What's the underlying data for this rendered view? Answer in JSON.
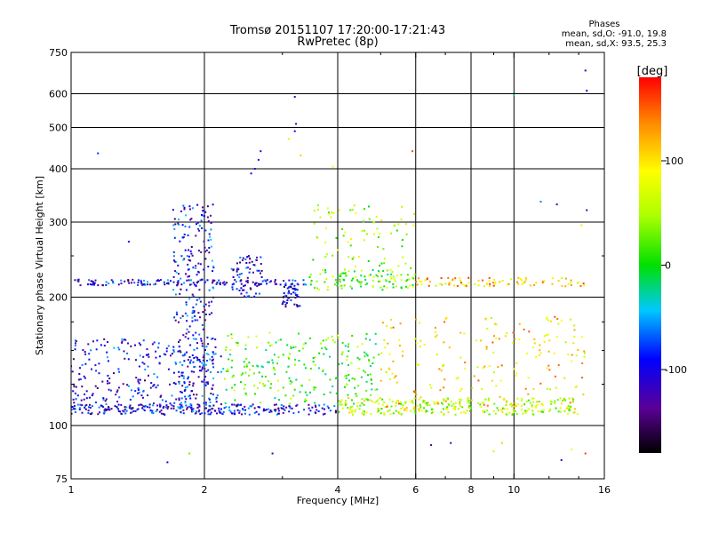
{
  "header": {
    "title_line1": "Tromsø 20151107 17:20:00-17:21:43",
    "title_line2": "RwPretec (8p)"
  },
  "phase_stats": {
    "heading": "Phases",
    "o_line": "mean, sd,O: -91.0, 19.8",
    "x_line": "mean, sd,X:  93.5, 25.3"
  },
  "chart_data": {
    "type": "scatter",
    "title": "Tromsø 20151107 17:20:00-17:21:43",
    "subtitle": "RwPretec (8p)",
    "xlabel": "Frequency [MHz]",
    "ylabel": "Stationary phase Virtual Height [km]",
    "xscale": "log",
    "yscale": "log",
    "xlim": [
      1,
      16
    ],
    "ylim": [
      75,
      750
    ],
    "xticks": [
      1,
      2,
      4,
      6,
      8,
      10,
      16
    ],
    "yticks": [
      75,
      100,
      200,
      300,
      400,
      500,
      600,
      750
    ],
    "xgrid": [
      2,
      4,
      6,
      8,
      10
    ],
    "ygrid": [
      100,
      200,
      300,
      400,
      500,
      600
    ],
    "colorbar": {
      "label": "[deg]",
      "min": -180,
      "max": 180,
      "ticks": [
        100,
        0,
        -100
      ],
      "colormap": "rainbow"
    },
    "clusters": [
      {
        "name": "F-layer O trace",
        "x": [
          1.0,
          3.4
        ],
        "y": [
          213,
          220
        ],
        "phase": -100,
        "count": 150
      },
      {
        "name": "F-layer mixed trace",
        "x": [
          3.4,
          6.0
        ],
        "y": [
          208,
          232
        ],
        "phase": 30,
        "count": 110
      },
      {
        "name": "F-layer X trace",
        "x": [
          6.0,
          14.5
        ],
        "y": [
          212,
          222
        ],
        "phase": 110,
        "count": 90
      },
      {
        "name": "E-layer O trace",
        "x": [
          1.0,
          4.0
        ],
        "y": [
          106,
          112
        ],
        "phase": -105,
        "count": 260
      },
      {
        "name": "E-layer mixed trace",
        "x": [
          4.0,
          14.0
        ],
        "y": [
          106,
          116
        ],
        "phase": 60,
        "count": 300
      },
      {
        "name": "spread echoes low freq",
        "x": [
          1.0,
          2.2
        ],
        "y": [
          110,
          160
        ],
        "phase": -100,
        "count": 260
      },
      {
        "name": "spread echoes mid freq",
        "x": [
          2.2,
          5.0
        ],
        "y": [
          112,
          165
        ],
        "phase": 20,
        "count": 240
      },
      {
        "name": "spread echoes high freq",
        "x": [
          5.0,
          14.5
        ],
        "y": [
          110,
          180
        ],
        "phase": 100,
        "count": 190
      },
      {
        "name": "vertical spread near 2 MHz",
        "x": [
          1.7,
          2.1
        ],
        "y": [
          110,
          330
        ],
        "phase": -95,
        "count": 280
      },
      {
        "name": "hump near 2.4 MHz",
        "x": [
          2.3,
          2.7
        ],
        "y": [
          200,
          250
        ],
        "phase": -105,
        "count": 70
      },
      {
        "name": "F-cusp cluster",
        "x": [
          3.0,
          3.3
        ],
        "y": [
          190,
          215
        ],
        "phase": -110,
        "count": 50
      },
      {
        "name": "F-region upper spread",
        "x": [
          3.5,
          6.0
        ],
        "y": [
          230,
          330
        ],
        "phase": 50,
        "count": 80
      }
    ],
    "points": [
      {
        "x": 2.55,
        "y": 390,
        "phase": -110
      },
      {
        "x": 2.6,
        "y": 400,
        "phase": -110
      },
      {
        "x": 2.65,
        "y": 420,
        "phase": -105
      },
      {
        "x": 2.68,
        "y": 440,
        "phase": -100
      },
      {
        "x": 3.1,
        "y": 470,
        "phase": 100
      },
      {
        "x": 3.2,
        "y": 490,
        "phase": -110
      },
      {
        "x": 3.22,
        "y": 510,
        "phase": -110
      },
      {
        "x": 3.2,
        "y": 590,
        "phase": -120
      },
      {
        "x": 3.3,
        "y": 430,
        "phase": 110
      },
      {
        "x": 2.0,
        "y": 310,
        "phase": -100
      },
      {
        "x": 1.15,
        "y": 435,
        "phase": -80
      },
      {
        "x": 1.35,
        "y": 270,
        "phase": -110
      },
      {
        "x": 3.9,
        "y": 405,
        "phase": 80
      },
      {
        "x": 5.9,
        "y": 440,
        "phase": 160
      },
      {
        "x": 10.0,
        "y": 595,
        "phase": -20
      },
      {
        "x": 14.5,
        "y": 680,
        "phase": -110
      },
      {
        "x": 14.6,
        "y": 610,
        "phase": -100
      },
      {
        "x": 14.6,
        "y": 320,
        "phase": -130
      },
      {
        "x": 12.5,
        "y": 330,
        "phase": -110
      },
      {
        "x": 11.5,
        "y": 335,
        "phase": -60
      },
      {
        "x": 14.2,
        "y": 295,
        "phase": 100
      },
      {
        "x": 1.65,
        "y": 82,
        "phase": -110
      },
      {
        "x": 1.85,
        "y": 86,
        "phase": 30
      },
      {
        "x": 2.85,
        "y": 86,
        "phase": -120
      },
      {
        "x": 6.5,
        "y": 90,
        "phase": -130
      },
      {
        "x": 7.2,
        "y": 91,
        "phase": -120
      },
      {
        "x": 9.0,
        "y": 87,
        "phase": 60
      },
      {
        "x": 9.4,
        "y": 91,
        "phase": 110
      },
      {
        "x": 12.8,
        "y": 83,
        "phase": -110
      },
      {
        "x": 13.5,
        "y": 88,
        "phase": 80
      },
      {
        "x": 14.5,
        "y": 86,
        "phase": 160
      }
    ]
  }
}
